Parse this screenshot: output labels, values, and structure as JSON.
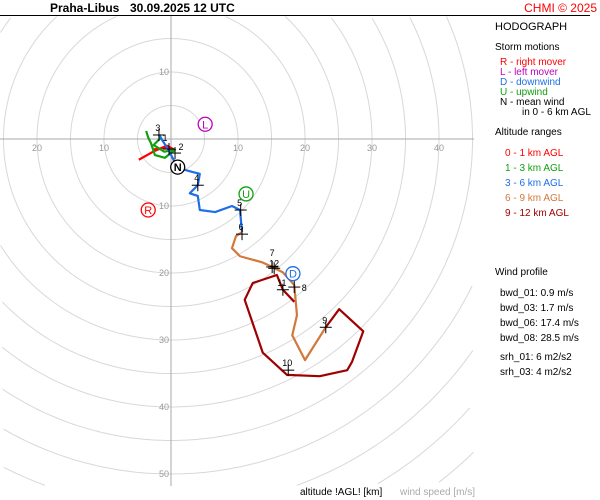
{
  "header": {
    "station": "Praha-Libus",
    "datetime": "30.09.2025 12 UTC",
    "copyright": "CHMI © 2025"
  },
  "panel": {
    "title": "HODOGRAPH",
    "storm_title": "Storm motions",
    "storm_legend": [
      {
        "text": "R - right mover",
        "color": "#ff0000"
      },
      {
        "text": "L - left mover",
        "color": "#c000c0"
      },
      {
        "text": "D - downwind",
        "color": "#1e6ee6"
      },
      {
        "text": "U - upwind",
        "color": "#10a010"
      },
      {
        "text": "N - mean wind",
        "color": "#000000"
      },
      {
        "text": "in 0 - 6 km AGL",
        "color": "#000000"
      }
    ],
    "alt_title": "Altitude ranges",
    "alt_legend": [
      {
        "text": "0 - 1 km AGL",
        "color": "#ff0000"
      },
      {
        "text": "1 - 3 km AGL",
        "color": "#10a010"
      },
      {
        "text": "3 - 6 km AGL",
        "color": "#1e6ee6"
      },
      {
        "text": "6 - 9 km AGL",
        "color": "#d2783c"
      },
      {
        "text": "9 - 12 km AGL",
        "color": "#a00000"
      }
    ],
    "wind_title": "Wind profile",
    "wind_profile": [
      "bwd_01: 0.9 m/s",
      "bwd_03: 1.7 m/s",
      "bwd_06: 17.4 m/s",
      "bwd_08: 28.5 m/s"
    ],
    "srh": [
      "srh_01: 6 m2/s2",
      "srh_03: 4 m2/s2"
    ]
  },
  "chart_data": {
    "type": "line",
    "title": "HODOGRAPH",
    "xlabel": "altitude !AGL! [km]",
    "ylabel": "wind speed [m/s]",
    "ring_step": 5,
    "x_ticks": [
      {
        "v": -20,
        "label": "20"
      },
      {
        "v": -10,
        "label": "10"
      },
      {
        "v": 10,
        "label": "10"
      },
      {
        "v": 20,
        "label": "20"
      },
      {
        "v": 30,
        "label": "30"
      },
      {
        "v": 40,
        "label": "40"
      }
    ],
    "y_ticks": [
      {
        "v": 10,
        "label": "10"
      },
      {
        "v": -10,
        "label": "10"
      },
      {
        "v": -20,
        "label": "20"
      },
      {
        "v": -30,
        "label": "30"
      },
      {
        "v": -40,
        "label": "40"
      },
      {
        "v": -50,
        "label": "50"
      }
    ],
    "series": [
      {
        "name": "0 - 1 km AGL",
        "color": "#ff0000",
        "points": [
          [
            -4.8,
            -3.1
          ],
          [
            -2.5,
            -1.8
          ],
          [
            -0.6,
            -1.0
          ],
          [
            0.5,
            -1.6
          ],
          [
            -1.0,
            -1.3
          ],
          [
            -2.8,
            -1.6
          ]
        ]
      },
      {
        "name": "1 - 3 km AGL",
        "color": "#10a010",
        "points": [
          [
            -3.7,
            1.2
          ],
          [
            -3.4,
            0.2
          ],
          [
            -3.0,
            -0.6
          ],
          [
            -2.4,
            -2.4
          ],
          [
            -0.9,
            -2.8
          ],
          [
            0.6,
            -1.6
          ],
          [
            -1.0,
            -1.9
          ],
          [
            -2.6,
            -0.9
          ],
          [
            -1.5,
            0.2
          ],
          [
            -1.8,
            0.6
          ]
        ]
      },
      {
        "name": "3 - 6 km AGL",
        "color": "#1e6ee6",
        "points": [
          [
            -1.8,
            0.6
          ],
          [
            -0.4,
            -1.6
          ],
          [
            1.0,
            -4.3
          ],
          [
            3.1,
            -4.9
          ],
          [
            4.3,
            -5.2
          ],
          [
            4.0,
            -6.9
          ],
          [
            2.8,
            -8.1
          ],
          [
            4.0,
            -8.5
          ],
          [
            4.3,
            -10.6
          ],
          [
            6.6,
            -10.9
          ],
          [
            9.1,
            -10.0
          ],
          [
            10.3,
            -10.6
          ],
          [
            10.6,
            -13.9
          ]
        ]
      },
      {
        "name": "6 - 9 km AGL",
        "color": "#d2783c",
        "points": [
          [
            10.6,
            -13.9
          ],
          [
            9.7,
            -14.5
          ],
          [
            9.1,
            -16.3
          ],
          [
            10.3,
            -17.5
          ],
          [
            13.6,
            -18.4
          ],
          [
            15.1,
            -19.1
          ],
          [
            16.7,
            -19.9
          ],
          [
            18.4,
            -21.8
          ],
          [
            18.8,
            -26.3
          ],
          [
            18.1,
            -29.3
          ],
          [
            20.0,
            -33.0
          ],
          [
            23.1,
            -28.1
          ]
        ]
      },
      {
        "name": "9 - 12 km AGL",
        "color": "#a00000",
        "points": [
          [
            23.1,
            -28.1
          ],
          [
            25.1,
            -25.4
          ],
          [
            28.7,
            -28.7
          ],
          [
            27.0,
            -33.3
          ],
          [
            26.3,
            -34.5
          ],
          [
            22.2,
            -35.4
          ],
          [
            17.3,
            -35.2
          ],
          [
            13.7,
            -31.9
          ],
          [
            11.0,
            -24.0
          ],
          [
            12.2,
            -21.5
          ],
          [
            15.8,
            -20.3
          ],
          [
            16.7,
            -22.5
          ],
          [
            18.4,
            -24.3
          ]
        ]
      }
    ],
    "altitude_markers": [
      {
        "label": "1",
        "u": -0.3,
        "v": -1.5
      },
      {
        "label": "2",
        "u": 0.6,
        "v": -2.1
      },
      {
        "label": "3",
        "u": -1.8,
        "v": 0.6
      },
      {
        "label": "4",
        "u": 4.0,
        "v": -6.9
      },
      {
        "label": "5",
        "u": 10.4,
        "v": -10.6
      },
      {
        "label": "6",
        "u": 10.6,
        "v": -14.2
      },
      {
        "label": "7",
        "u": 15.1,
        "v": -19.1
      },
      {
        "label": "8",
        "u": 18.4,
        "v": -22.1
      },
      {
        "label": "9",
        "u": 23.1,
        "v": -28.1
      },
      {
        "label": "10",
        "u": 17.5,
        "v": -34.5
      },
      {
        "label": "11",
        "u": 16.7,
        "v": -22.5
      },
      {
        "label": "12",
        "u": 15.4,
        "v": -19.3
      }
    ],
    "storm_motions": [
      {
        "label": "L",
        "u": 5.1,
        "v": 2.2,
        "color": "#c000c0"
      },
      {
        "label": "R",
        "u": -3.4,
        "v": -10.6,
        "color": "#ff0000"
      },
      {
        "label": "N",
        "u": 1.0,
        "v": -4.2,
        "color": "#000000"
      },
      {
        "label": "U",
        "u": 11.2,
        "v": -8.2,
        "color": "#10a010"
      },
      {
        "label": "D",
        "u": 18.2,
        "v": -20.1,
        "color": "#1e6ee6"
      }
    ]
  }
}
